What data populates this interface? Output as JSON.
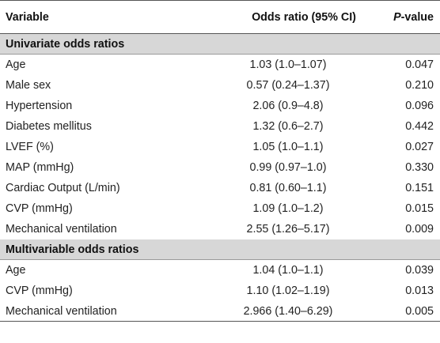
{
  "header": {
    "col_variable": "Variable",
    "col_or": "Odds ratio (95% CI)",
    "col_p_italic": "P",
    "col_p_rest": "-value"
  },
  "univariate": {
    "title": "Univariate odds ratios",
    "rows": [
      {
        "variable": "Age",
        "or": "1.03 (1.0–1.07)",
        "p": "0.047"
      },
      {
        "variable": "Male sex",
        "or": "0.57 (0.24–1.37)",
        "p": "0.210"
      },
      {
        "variable": "Hypertension",
        "or": "2.06 (0.9–4.8)",
        "p": "0.096"
      },
      {
        "variable": "Diabetes mellitus",
        "or": "1.32 (0.6–2.7)",
        "p": "0.442"
      },
      {
        "variable": "LVEF (%)",
        "or": "1.05 (1.0–1.1)",
        "p": "0.027"
      },
      {
        "variable": "MAP (mmHg)",
        "or": "0.99 (0.97–1.0)",
        "p": "0.330"
      },
      {
        "variable": "Cardiac Output (L/min)",
        "or": "0.81 (0.60–1.1)",
        "p": "0.151"
      },
      {
        "variable": "CVP (mmHg)",
        "or": "1.09 (1.0–1.2)",
        "p": "0.015"
      },
      {
        "variable": "Mechanical ventilation",
        "or": "2.55 (1.26–5.17)",
        "p": "0.009"
      }
    ]
  },
  "multivariable": {
    "title": "Multivariable odds ratios",
    "rows": [
      {
        "variable": "Age",
        "or": "1.04 (1.0–1.1)",
        "p": "0.039"
      },
      {
        "variable": "CVP (mmHg)",
        "or": "1.10 (1.02–1.19)",
        "p": "0.013"
      },
      {
        "variable": "Mechanical ventilation",
        "or": "2.966 (1.40–6.29)",
        "p": "0.005"
      }
    ]
  }
}
